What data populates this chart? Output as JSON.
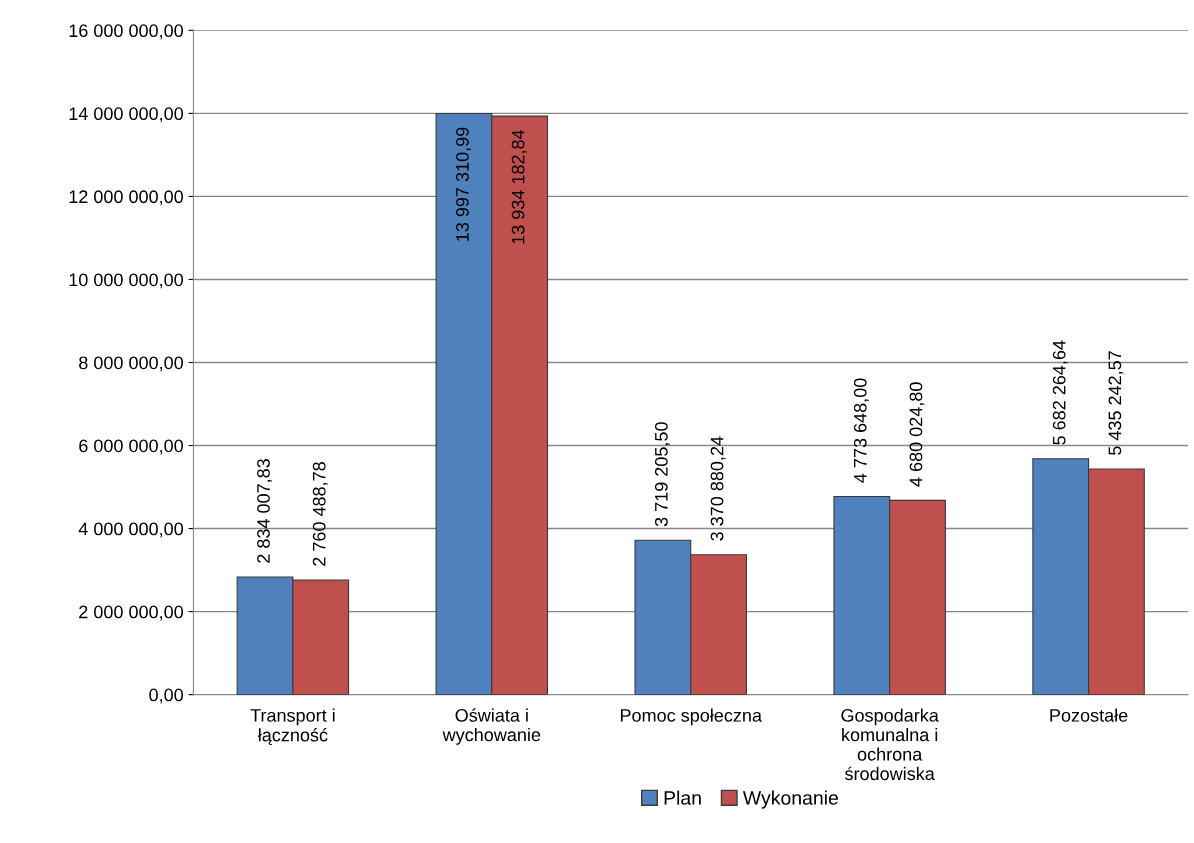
{
  "chart_data": {
    "type": "bar",
    "categories": [
      "Transport i\nłączność",
      "Oświata i\nwychowanie",
      "Pomoc społeczna",
      "Gospodarka\nkomunalna i\nochrona\nśrodowiska",
      "Pozostałe"
    ],
    "series": [
      {
        "name": "Plan",
        "color": "#4f81bd",
        "values": [
          2834007.83,
          13997310.99,
          3719205.5,
          4773648.0,
          5682264.64
        ],
        "value_labels": [
          "2 834 007,83",
          "13 997 310,99",
          "3 719 205,50",
          "4 773 648,00",
          "5 682 264,64"
        ]
      },
      {
        "name": "Wykonanie",
        "color": "#c0504d",
        "values": [
          2760488.78,
          13934182.84,
          3370880.24,
          4680024.8,
          5435242.57
        ],
        "value_labels": [
          "2 760 488,78",
          "13 934 182,84",
          "3 370 880,24",
          "4 680 024,80",
          "5 435 242,57"
        ]
      }
    ],
    "ylim": [
      0,
      16000000
    ],
    "yticks": [
      {
        "value": 0,
        "label": "0,00"
      },
      {
        "value": 2000000,
        "label": "2 000 000,00"
      },
      {
        "value": 4000000,
        "label": "4 000 000,00"
      },
      {
        "value": 6000000,
        "label": "6 000 000,00"
      },
      {
        "value": 8000000,
        "label": "8 000 000,00"
      },
      {
        "value": 10000000,
        "label": "10 000 000,00"
      },
      {
        "value": 12000000,
        "label": "12 000 000,00"
      },
      {
        "value": 14000000,
        "label": "14 000 000,00"
      },
      {
        "value": 16000000,
        "label": "16 000 000,00"
      }
    ],
    "grid": "y",
    "legend": "bottom"
  }
}
